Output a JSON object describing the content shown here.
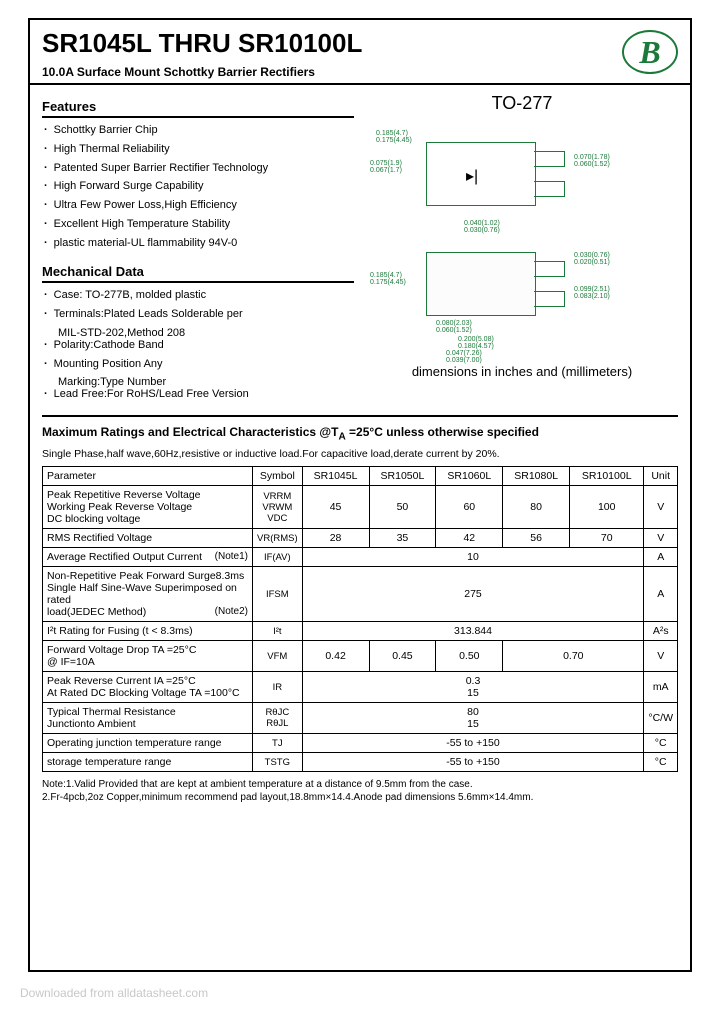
{
  "header": {
    "title": "SR1045L THRU SR10100L",
    "subtitle": "10.0A Surface Mount Schottky Barrier Rectifiers",
    "logo_letter": "B"
  },
  "features": {
    "heading": "Features",
    "items": [
      "Schottky Barrier Chip",
      "High Thermal Reliability",
      "Patented Super Barrier Rectifier Technology",
      "High Forward Surge Capability",
      "Ultra Few Power Loss,High Efficiency",
      "Excellent High Temperature Stability",
      "plastic material-UL flammability 94V-0"
    ]
  },
  "mechanical": {
    "heading": "Mechanical Data",
    "items": [
      "Case: TO-277B, molded plastic",
      "Terminals:Plated Leads Solderable per",
      "MIL-STD-202,Method 208",
      "Polarity:Cathode Band",
      "Mounting Position Any",
      "Marking:Type Number",
      "Lead Free:For RoHS/Lead Free Version"
    ]
  },
  "package": {
    "label": "TO-277",
    "caption": "dimensions in inches and (millimeters)"
  },
  "ratings": {
    "heading": "Maximum Ratings and Electrical Characteristics @T",
    "heading_sub": "A",
    "heading_tail": " =25°C unless otherwise specified",
    "note": "Single Phase,half wave,60Hz,resistive or inductive load.For capacitive load,derate current by 20%.",
    "columns": [
      "Parameter",
      "Symbol",
      "SR1045L",
      "SR1050L",
      "SR1060L",
      "SR1080L",
      "SR10100L",
      "Unit"
    ],
    "rows": [
      {
        "param": "Peak Repetitive Reverse Voltage\nWorking Peak Reverse Voltage\nDC blocking voltage",
        "symbol": "VRRM\nVRWM\nVDC",
        "v": [
          "45",
          "50",
          "60",
          "80",
          "100"
        ],
        "unit": "V"
      },
      {
        "param": "RMS Rectified Voltage",
        "symbol": "VR(RMS)",
        "v": [
          "28",
          "35",
          "42",
          "56",
          "70"
        ],
        "unit": "V"
      },
      {
        "param": "Average Rectified Output Current",
        "note": "(Note1)",
        "symbol": "IF(AV)",
        "span": "10",
        "unit": "A"
      },
      {
        "param": "Non-Repetitive Peak Forward Surge8.3ms\nSingle Half Sine-Wave Superimposed on rated\nload(JEDEC Method)",
        "note": "(Note2)",
        "symbol": "IFSM",
        "span": "275",
        "unit": "A"
      },
      {
        "param": "I²t Rating for Fusing (t < 8.3ms)",
        "symbol": "I²t",
        "span": "313.844",
        "unit": "A²s"
      },
      {
        "param": "Forward Voltage Drop  TA =25°C\n                                    @ IF=10A",
        "symbol": "VFM",
        "v4": [
          "0.42",
          "0.45",
          "0.50",
          "0.70"
        ],
        "unit": "V"
      },
      {
        "param": "Peak Reverse Current                    IA =25°C\nAt Rated DC Blocking Voltage       TA =100°C",
        "symbol": "IR",
        "span2": [
          "0.3",
          "15"
        ],
        "unit": "mA"
      },
      {
        "param": "Typical Thermal Resistance\nJunctionto Ambient",
        "symbol": "RθJC\nRθJL",
        "span2": [
          "80",
          "15"
        ],
        "unit": "°C/W"
      },
      {
        "param": "Operating junction temperature range",
        "symbol": "TJ",
        "span": "-55 to +150",
        "unit": "°C"
      },
      {
        "param": "storage temperature range",
        "symbol": "TSTG",
        "span": "-55 to +150",
        "unit": "°C"
      }
    ],
    "footnote": "Note:1.Valid Provided that are kept at ambient temperature at a distance of 9.5mm from the case.\n        2.Fr-4pcb,2oz Copper,minimum recommend pad layout,18.8mm×14.4.Anode pad dimensions 5.6mm×14.4mm."
  },
  "watermark": "Downloaded from alldatasheet.com"
}
